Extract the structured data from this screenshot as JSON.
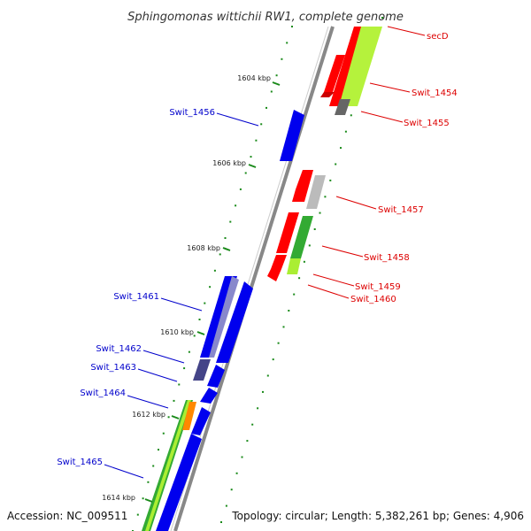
{
  "title": "Sphingomonas wittichii RW1, complete genome",
  "footer": {
    "accession": "Accession: NC_009511",
    "topology": "Topology: circular; Length: 5,382,261 bp; Genes: 4,906"
  },
  "ticks": [
    "1604 kbp",
    "1606 kbp",
    "1608 kbp",
    "1610 kbp",
    "1612 kbp",
    "1614 kbp"
  ],
  "genes_reverse": [
    "Swit_1456",
    "Swit_1461",
    "Swit_1462",
    "Swit_1463",
    "Swit_1464",
    "Swit_1465"
  ],
  "genes_forward": [
    "secD",
    "Swit_1454",
    "Swit_1455",
    "Swit_1457",
    "Swit_1458",
    "Swit_1459",
    "Swit_1460"
  ],
  "colors": {
    "reverse_label": "#0000cc",
    "forward_label": "#dd0000",
    "backbone": "#888888",
    "cds_red": "#ff0000",
    "cds_blue": "#0000ee",
    "match_green": "#33aa33",
    "match_lime": "#aaee33",
    "match_grey": "#666666",
    "match_purple": "#444488",
    "match_orange": "#ff8800"
  }
}
